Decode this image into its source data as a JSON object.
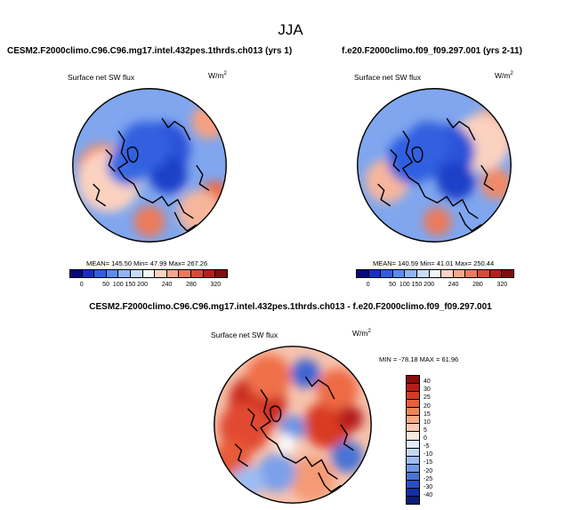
{
  "season_title": "JJA",
  "panels": [
    {
      "case_title": "CESM2.F2000climo.C96.C96.mg17.intel.432pes.1thrds.ch013 (yrs 1)",
      "variable": "Surface net SW flux",
      "units_base": "W/m",
      "units_exp": "2",
      "stats": "MEAN= 145.50  Min=  47.99  Max= 267.26"
    },
    {
      "case_title": "f.e20.F2000climo.f09_f09.297.001 (yrs 2-11)",
      "variable": "Surface net SW flux",
      "units_base": "W/m",
      "units_exp": "2",
      "stats": "MEAN= 140.59  Min=  41.01  Max= 250.44"
    },
    {
      "case_title": "CESM2.F2000climo.C96.C96.mg17.intel.432pes.1thrds.ch013 - f.e20.F2000climo.f09_f09.297.001",
      "variable": "Surface net SW flux",
      "units_base": "W/m",
      "units_exp": "2",
      "stats": "MIN = -78.18  MAX =  61.96"
    }
  ],
  "abs_colorbar": {
    "labels": [
      "0",
      "50",
      "100",
      "150",
      "200",
      "240",
      "280",
      "320"
    ],
    "colors": [
      "#08087a",
      "#1a2fc2",
      "#2f5fe0",
      "#5a8cef",
      "#8fb4f5",
      "#c7dcfb",
      "#f4f4f4",
      "#fbd3c2",
      "#f6a888",
      "#ec7a5c",
      "#d94a35",
      "#b51f1b",
      "#7f0d0d"
    ]
  },
  "diff_colorbar": {
    "labels": [
      "40",
      "30",
      "25",
      "20",
      "15",
      "10",
      "5",
      "0",
      "-5",
      "-10",
      "-15",
      "-20",
      "-25",
      "-30",
      "-40"
    ],
    "colors": [
      "#8a0d0d",
      "#b51f1b",
      "#d43a25",
      "#e85f3a",
      "#f2845a",
      "#f8a886",
      "#fccab5",
      "#fbe6dc",
      "#e3edfb",
      "#c4d7f6",
      "#9dbcf2",
      "#7199e6",
      "#4a73d6",
      "#2a4fc4",
      "#142fa3",
      "#081e7a"
    ]
  },
  "maps": {
    "panel1": {
      "blobs": [
        {
          "c": "#f08a68",
          "x": 20,
          "y": 52,
          "r": 16
        },
        {
          "c": "#fbd2c0",
          "x": 24,
          "y": 60,
          "r": 20
        },
        {
          "c": "#f6a080",
          "x": 88,
          "y": 22,
          "r": 11
        },
        {
          "c": "#e86a4a",
          "x": 92,
          "y": 70,
          "r": 10
        },
        {
          "c": "#f7b69c",
          "x": 82,
          "y": 80,
          "r": 14
        },
        {
          "c": "#ec7a5c",
          "x": 50,
          "y": 86,
          "r": 10
        },
        {
          "c": "#2a53d8",
          "x": 58,
          "y": 40,
          "r": 18
        },
        {
          "c": "#1e3fc7",
          "x": 62,
          "y": 56,
          "r": 12
        },
        {
          "c": "#3b6ae3",
          "x": 36,
          "y": 50,
          "r": 13
        },
        {
          "c": "#3361df",
          "x": 47,
          "y": 38,
          "r": 16
        }
      ]
    },
    "panel2": {
      "blobs": [
        {
          "c": "#f6a888",
          "x": 86,
          "y": 30,
          "r": 16
        },
        {
          "c": "#fbd2c0",
          "x": 80,
          "y": 36,
          "r": 18
        },
        {
          "c": "#f08a68",
          "x": 90,
          "y": 62,
          "r": 10
        },
        {
          "c": "#f7b69c",
          "x": 20,
          "y": 60,
          "r": 14
        },
        {
          "c": "#ec7a5c",
          "x": 52,
          "y": 86,
          "r": 9
        },
        {
          "c": "#2a53d8",
          "x": 58,
          "y": 42,
          "r": 18
        },
        {
          "c": "#1e3fc7",
          "x": 64,
          "y": 60,
          "r": 12
        },
        {
          "c": "#2f5fe0",
          "x": 36,
          "y": 46,
          "r": 16
        },
        {
          "c": "#3361df",
          "x": 46,
          "y": 36,
          "r": 14
        }
      ]
    },
    "panel3": {
      "blobs": [
        {
          "c": "#c9291f",
          "x": 28,
          "y": 36,
          "r": 18
        },
        {
          "c": "#e24a30",
          "x": 20,
          "y": 52,
          "r": 16
        },
        {
          "c": "#f07048",
          "x": 35,
          "y": 20,
          "r": 14
        },
        {
          "c": "#d93a24",
          "x": 72,
          "y": 50,
          "r": 15
        },
        {
          "c": "#ee6a44",
          "x": 78,
          "y": 28,
          "r": 13
        },
        {
          "c": "#e85a38",
          "x": 12,
          "y": 72,
          "r": 12
        },
        {
          "c": "#f49a74",
          "x": 62,
          "y": 84,
          "r": 14
        },
        {
          "c": "#6a92e4",
          "x": 50,
          "y": 52,
          "r": 8
        },
        {
          "c": "#3d64d4",
          "x": 58,
          "y": 18,
          "r": 9
        },
        {
          "c": "#7aa0ea",
          "x": 40,
          "y": 80,
          "r": 12
        },
        {
          "c": "#4a73d6",
          "x": 84,
          "y": 70,
          "r": 10
        },
        {
          "c": "#9dbcf2",
          "x": 22,
          "y": 86,
          "r": 10
        },
        {
          "c": "#ffffff",
          "x": 46,
          "y": 62,
          "r": 6
        },
        {
          "c": "#b51f1b",
          "x": 86,
          "y": 46,
          "r": 8
        }
      ]
    }
  }
}
